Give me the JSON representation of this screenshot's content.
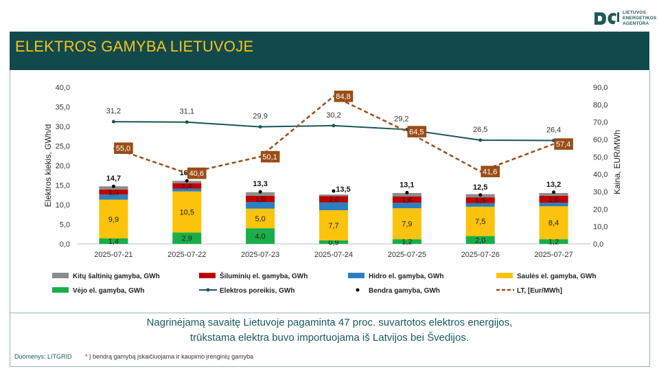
{
  "logo": {
    "line1": "LIETUVOS",
    "line2": "ENERGETIKOS",
    "line3": "AGENTŪRA",
    "color": "#1f5b57"
  },
  "title": "ELEKTROS GAMYBA LIETUVOJE",
  "summary": {
    "line1": "Nagrinėjamą savaitę Lietuvoje pagaminta 47 proc. suvartotos elektros energijos,",
    "line2": "trūkstama elektra buvo importuojama iš Latvijos bei Švedijos."
  },
  "source": "Duomenys: LITGRID",
  "note": "* Į bendrą gamybą įskaičiuojama ir kaupimo įrenginių gamyba",
  "chart_data": {
    "type": "bar",
    "categories": [
      "2025-07-21",
      "2025-07-22",
      "2025-07-23",
      "2025-07-24",
      "2025-07-25",
      "2025-07-26",
      "2025-07-27"
    ],
    "ylabel": "Elektros kiekis, GWh/d",
    "y2label": "Kaina, EUR/MWh",
    "ylim": [
      0,
      40
    ],
    "y2lim": [
      0,
      90
    ],
    "yticks": [
      "0,0",
      "5,0",
      "10,0",
      "15,0",
      "20,0",
      "25,0",
      "30,0",
      "35,0",
      "40,0"
    ],
    "y2ticks": [
      "0,0",
      "10,0",
      "20,0",
      "30,0",
      "40,0",
      "50,0",
      "60,0",
      "70,0",
      "80,0",
      "90,0"
    ],
    "stacked_series": [
      {
        "name": "Vėjo el. gamyba, GWh",
        "color": "#1aae4a",
        "values": [
          1.4,
          2.9,
          4.0,
          0.9,
          1.2,
          2.0,
          1.2
        ],
        "labels": [
          "1,4",
          "2,9",
          "4,0",
          "0,9",
          "1,2",
          "2,0",
          "1,2"
        ]
      },
      {
        "name": "Saulės el. gamyba, GWh",
        "color": "#fbc30c",
        "values": [
          9.9,
          10.5,
          5.0,
          7.7,
          7.9,
          7.5,
          8.4
        ],
        "labels": [
          "9,9",
          "10,5",
          "5,0",
          "7,7",
          "7,9",
          "7,5",
          "8,4"
        ]
      },
      {
        "name": "Hidro el. gamyba, GWh",
        "color": "#2a7fc1",
        "values": [
          1.3,
          0.7,
          1.7,
          2.0,
          1.4,
          0.9,
          0.9
        ],
        "labels": [
          "",
          "",
          "",
          "",
          "",
          "",
          ""
        ]
      },
      {
        "name": "Šiluminių el. gamyba, GWh",
        "color": "#c00000",
        "values": [
          1.3,
          1.4,
          1.6,
          1.6,
          1.6,
          1.5,
          1.8
        ],
        "labels": [
          "1,3",
          "1,4",
          "1,6",
          "1,6",
          "1,6",
          "1,5",
          "1,8"
        ]
      },
      {
        "name": "Kitų šaltinių gamyba,  GWh",
        "color": "#8c8c8c",
        "values": [
          0.8,
          0.6,
          0.9,
          0.4,
          0.9,
          0.8,
          0.7
        ],
        "labels": [
          "",
          "",
          "",
          "",
          "",
          "",
          ""
        ]
      }
    ],
    "total": {
      "name": "Bendra gamyba, GWh",
      "values": [
        14.7,
        16.1,
        13.3,
        13.5,
        13.1,
        12.5,
        13.2
      ],
      "labels": [
        "14,7",
        "16,1",
        "13,3",
        "13,5",
        "13,1",
        "12,5",
        "13,2"
      ]
    },
    "demand": {
      "name": "Elektros poreikis, GWh",
      "color": "#17555a",
      "values": [
        31.2,
        31.1,
        29.9,
        30.2,
        29.2,
        26.5,
        26.4
      ],
      "labels": [
        "31,2",
        "31,1",
        "29,9",
        "30,2",
        "29,2",
        "26,5",
        "26,4"
      ]
    },
    "price": {
      "name": "LT, [Eur/MWh]",
      "color": "#9c4d16",
      "values": [
        55.0,
        40.6,
        50.1,
        84.8,
        64.5,
        41.6,
        57.4
      ],
      "labels": [
        "55,0",
        "40,6",
        "50,1",
        "84,8",
        "64,5",
        "41,6",
        "57,4"
      ]
    },
    "legend": [
      {
        "key": "other",
        "label": "Kitų šaltinių gamyba,  GWh"
      },
      {
        "key": "thermal",
        "label": "Šiluminių el. gamyba, GWh"
      },
      {
        "key": "hydro",
        "label": "Hidro el. gamyba, GWh"
      },
      {
        "key": "solar",
        "label": "Saulės el. gamyba, GWh"
      },
      {
        "key": "wind",
        "label": "Vėjo el. gamyba, GWh"
      },
      {
        "key": "demand",
        "label": "Elektros poreikis, GWh"
      },
      {
        "key": "total",
        "label": "Bendra gamyba, GWh"
      },
      {
        "key": "price",
        "label": "LT, [Eur/MWh]"
      }
    ]
  }
}
